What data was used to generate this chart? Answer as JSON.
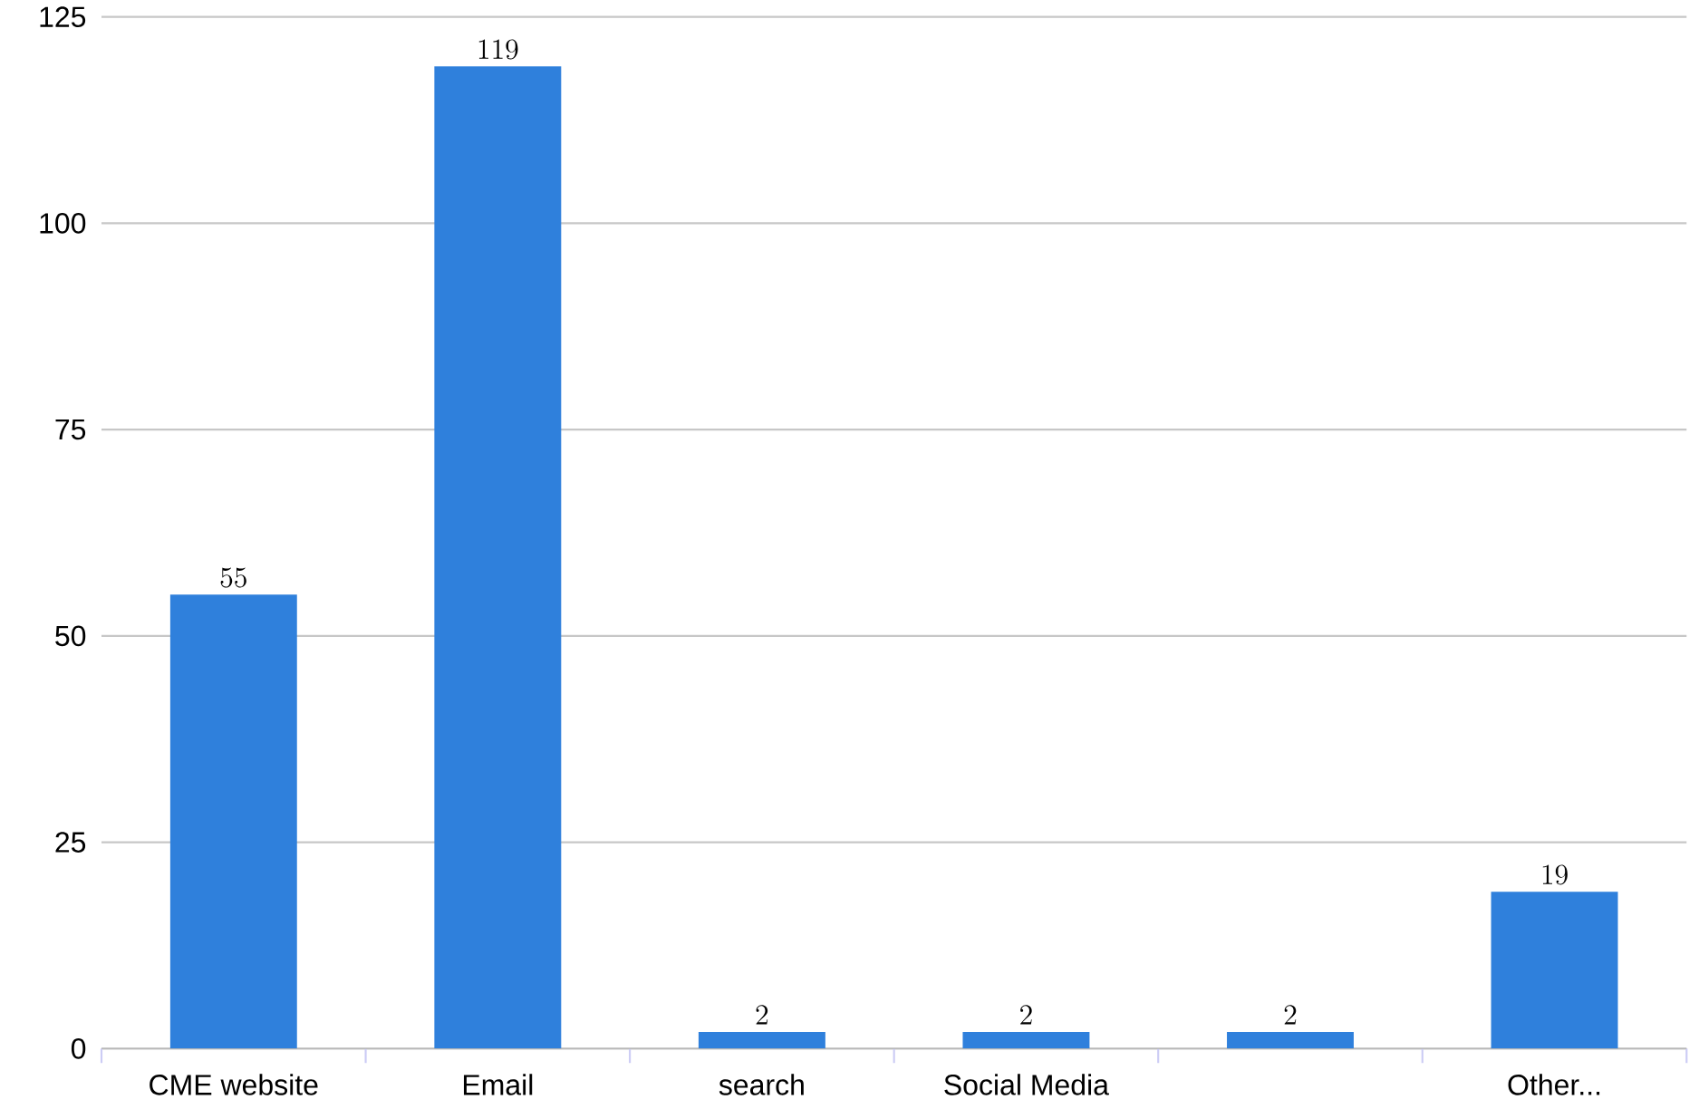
{
  "chart_data": {
    "type": "bar",
    "categories": [
      "CME website",
      "Email",
      "search",
      "Social Media",
      null,
      "Other..."
    ],
    "values": [
      55,
      119,
      2,
      2,
      2,
      19
    ],
    "color": "#2f80dc",
    "ylim": [
      0,
      125
    ],
    "yticks": [
      0,
      25,
      50,
      75,
      100,
      125
    ],
    "grid": "y",
    "data_labels": true
  }
}
